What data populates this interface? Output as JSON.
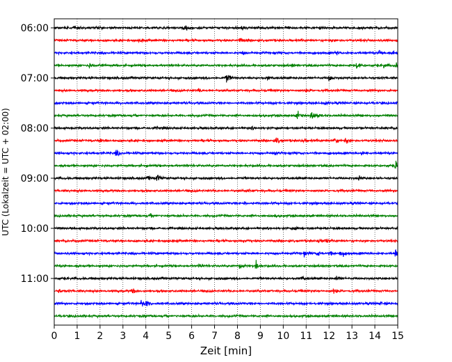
{
  "chart_data": {
    "type": "line",
    "title": "",
    "xlabel": "Zeit  [min]",
    "ylabel": "UTC (Lokalzeit = UTC + 02:00)",
    "xlim": [
      0,
      15
    ],
    "x_ticks": [
      "0",
      "1",
      "2",
      "3",
      "4",
      "5",
      "6",
      "7",
      "8",
      "9",
      "10",
      "11",
      "12",
      "13",
      "14",
      "15"
    ],
    "y_ticks": [
      "06:00",
      "07:00",
      "08:00",
      "09:00",
      "10:00",
      "11:00"
    ],
    "grid": "vertical dotted",
    "colors": {
      "black": "#000000",
      "red": "#ff0000",
      "blue": "#0000ff",
      "green": "#008000"
    },
    "traces": [
      {
        "start": "06:00",
        "color": "black",
        "events": [
          [
            0.9,
            0.4
          ],
          [
            5.7,
            0.8
          ],
          [
            8.2,
            0.4
          ],
          [
            10.2,
            0.4
          ],
          [
            11.6,
            0.5
          ]
        ]
      },
      {
        "start": "06:15",
        "color": "red",
        "events": [
          [
            3.7,
            0.7
          ],
          [
            8.1,
            0.8
          ],
          [
            12.0,
            0.3
          ]
        ]
      },
      {
        "start": "06:30",
        "color": "blue",
        "events": [
          [
            8.2,
            0.4
          ],
          [
            12.3,
            0.5
          ],
          [
            14.2,
            1.0
          ],
          [
            14.8,
            0.5
          ]
        ]
      },
      {
        "start": "06:45",
        "color": "green",
        "events": [
          [
            1.5,
            0.8
          ],
          [
            2.0,
            0.4
          ],
          [
            10.4,
            0.4
          ],
          [
            13.2,
            0.8
          ],
          [
            14.4,
            0.6
          ],
          [
            14.9,
            0.6
          ]
        ]
      },
      {
        "start": "07:00",
        "color": "black",
        "events": [
          [
            7.5,
            1.5
          ],
          [
            12.0,
            1.0
          ],
          [
            9.3,
            0.3
          ]
        ]
      },
      {
        "start": "07:15",
        "color": "red",
        "events": [
          [
            6.3,
            0.3
          ],
          [
            11.0,
            0.3
          ]
        ]
      },
      {
        "start": "07:30",
        "color": "blue",
        "events": [
          [
            11.8,
            0.3
          ]
        ]
      },
      {
        "start": "07:45",
        "color": "green",
        "events": [
          [
            10.6,
            0.9
          ],
          [
            11.2,
            1.0
          ],
          [
            11.5,
            0.5
          ]
        ]
      },
      {
        "start": "08:00",
        "color": "black",
        "events": [
          [
            4.5,
            0.4
          ],
          [
            8.6,
            0.3
          ]
        ]
      },
      {
        "start": "08:15",
        "color": "red",
        "events": [
          [
            2.0,
            0.4
          ],
          [
            9.7,
            0.9
          ],
          [
            10.8,
            0.5
          ],
          [
            12.2,
            1.0
          ],
          [
            12.7,
            0.8
          ]
        ]
      },
      {
        "start": "08:30",
        "color": "blue",
        "events": [
          [
            2.7,
            0.9
          ],
          [
            9.6,
            0.6
          ],
          [
            13.4,
            0.5
          ]
        ]
      },
      {
        "start": "08:45",
        "color": "green",
        "events": [
          [
            14.9,
            1.0
          ]
        ]
      },
      {
        "start": "09:00",
        "color": "black",
        "events": [
          [
            4.1,
            0.5
          ],
          [
            4.5,
            1.0
          ],
          [
            13.3,
            0.4
          ]
        ]
      },
      {
        "start": "09:15",
        "color": "red",
        "events": [
          [
            8.4,
            0.3
          ]
        ]
      },
      {
        "start": "09:30",
        "color": "blue",
        "events": [
          [
            8.3,
            0.4
          ]
        ]
      },
      {
        "start": "09:45",
        "color": "green",
        "events": [
          [
            4.2,
            0.3
          ],
          [
            9.6,
            0.3
          ]
        ]
      },
      {
        "start": "10:00",
        "color": "black",
        "events": [
          [
            10.5,
            0.3
          ]
        ]
      },
      {
        "start": "10:15",
        "color": "red",
        "events": [
          [
            5.0,
            0.3
          ],
          [
            8.3,
            0.3
          ],
          [
            11.5,
            0.8
          ],
          [
            11.8,
            0.7
          ]
        ]
      },
      {
        "start": "10:30",
        "color": "blue",
        "events": [
          [
            10.9,
            0.6
          ],
          [
            11.5,
            0.7
          ],
          [
            12.0,
            0.5
          ],
          [
            12.5,
            1.0
          ],
          [
            14.9,
            0.8
          ]
        ]
      },
      {
        "start": "10:45",
        "color": "green",
        "events": [
          [
            8.1,
            1.0
          ],
          [
            8.8,
            1.2
          ],
          [
            6.3,
            0.3
          ]
        ]
      },
      {
        "start": "11:00",
        "color": "black",
        "events": [
          [
            10.8,
            0.5
          ],
          [
            12.3,
            0.5
          ]
        ]
      },
      {
        "start": "11:15",
        "color": "red",
        "events": [
          [
            0.2,
            0.5
          ],
          [
            3.4,
            0.6
          ],
          [
            12.2,
            0.8
          ]
        ]
      },
      {
        "start": "11:30",
        "color": "blue",
        "events": [
          [
            3.8,
            0.9
          ],
          [
            4.0,
            0.8
          ],
          [
            14.2,
            0.4
          ]
        ]
      },
      {
        "start": "11:45",
        "color": "green",
        "events": []
      }
    ]
  }
}
